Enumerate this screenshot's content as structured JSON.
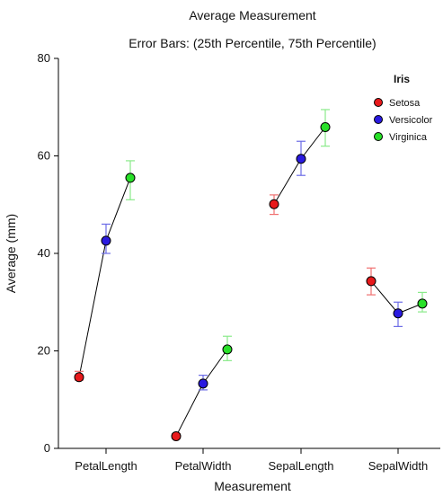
{
  "chart_data": {
    "type": "line",
    "title": "Average Measurement",
    "subtitle": "Error Bars: (25th Percentile, 75th Percentile)",
    "xlabel": "Measurement",
    "ylabel": "Average (mm)",
    "ylim": [
      0,
      80
    ],
    "yticks": [
      "0",
      "20",
      "40",
      "60",
      "80"
    ],
    "grid": false,
    "legend_title": "Iris",
    "legend_position": "top-right",
    "categories": [
      "PetalLength",
      "PetalWidth",
      "SepalLength",
      "SepalWidth"
    ],
    "series": [
      {
        "name": "Setosa",
        "color": "#e8191b",
        "bar_color": "#f07070",
        "values": [
          14.6,
          2.5,
          50.1,
          34.3
        ],
        "q25": [
          14.0,
          2.0,
          48.0,
          31.5
        ],
        "q75": [
          15.8,
          3.0,
          52.0,
          37.0
        ]
      },
      {
        "name": "Versicolor",
        "color": "#2a1ae0",
        "bar_color": "#6b6be6",
        "values": [
          42.6,
          13.3,
          59.4,
          27.7
        ],
        "q25": [
          40.0,
          12.0,
          56.0,
          25.0
        ],
        "q75": [
          46.0,
          15.0,
          63.0,
          30.0
        ]
      },
      {
        "name": "Virginica",
        "color": "#28e028",
        "bar_color": "#8aea8a",
        "values": [
          55.5,
          20.3,
          65.9,
          29.7
        ],
        "q25": [
          51.0,
          18.0,
          62.0,
          28.0
        ],
        "q75": [
          59.0,
          23.0,
          69.5,
          32.0
        ]
      }
    ]
  }
}
